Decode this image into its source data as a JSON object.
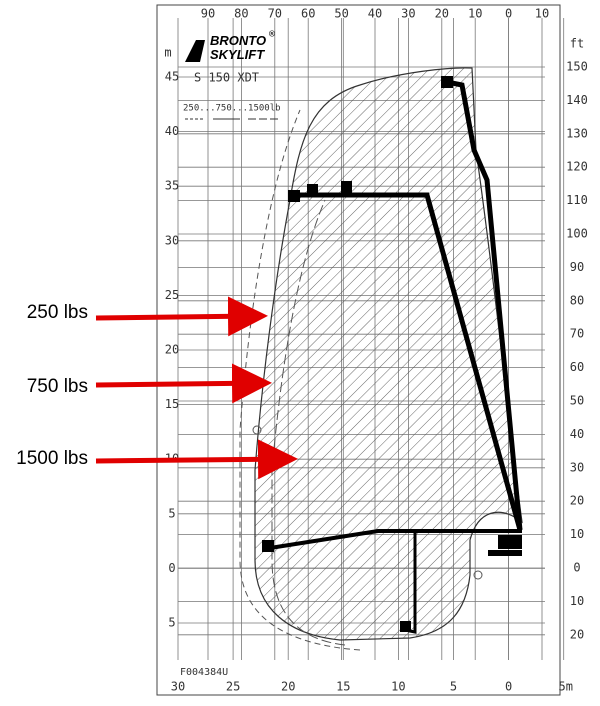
{
  "logo": {
    "brand_top": "BRONTO",
    "brand_bottom": "SKYLIFT",
    "registered": "®"
  },
  "model": "S 150 XDT",
  "legend": "250...750...1500lb",
  "code": "F004384U",
  "axes": {
    "left_unit": "m",
    "left": [
      "45",
      "40",
      "35",
      "30",
      "25",
      "20",
      "15",
      "10",
      "5",
      "0",
      "5"
    ],
    "right_unit": "ft",
    "right": [
      "150",
      "140",
      "130",
      "120",
      "110",
      "100",
      "90",
      "80",
      "70",
      "60",
      "50",
      "40",
      "30",
      "20",
      "10",
      "0",
      "10",
      "20"
    ],
    "top": [
      "90",
      "80",
      "70",
      "60",
      "50",
      "40",
      "30",
      "20",
      "10",
      "0",
      "10"
    ],
    "bottom": [
      "30",
      "25",
      "20",
      "15",
      "10",
      "5",
      "0",
      "5m"
    ]
  },
  "callouts": [
    {
      "label": "250 lbs"
    },
    {
      "label": "750 lbs"
    },
    {
      "label": "1500 lbs"
    }
  ]
}
